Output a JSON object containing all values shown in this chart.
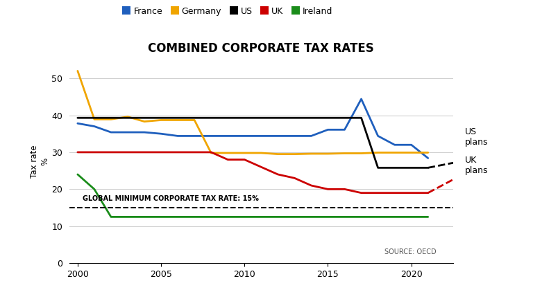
{
  "title": "COMBINED CORPORATE TAX RATES",
  "ylabel": "Tax rate\n%",
  "source": "SOURCE: OECD",
  "ylim": [
    0,
    55
  ],
  "yticks": [
    0,
    10,
    20,
    30,
    40,
    50
  ],
  "xlim": [
    1999.5,
    2022.5
  ],
  "xticks": [
    2000,
    2005,
    2010,
    2015,
    2020
  ],
  "global_min_rate": 15,
  "global_min_label": "GLOBAL MINIMUM CORPORATE TAX RATE: 15%",
  "series": {
    "France": {
      "color": "#1f5fbd",
      "years": [
        2000,
        2001,
        2002,
        2003,
        2004,
        2005,
        2006,
        2007,
        2008,
        2009,
        2010,
        2011,
        2012,
        2013,
        2014,
        2015,
        2016,
        2017,
        2018,
        2019,
        2020,
        2021
      ],
      "values": [
        37.8,
        37.0,
        35.4,
        35.4,
        35.4,
        35.0,
        34.4,
        34.4,
        34.4,
        34.4,
        34.4,
        34.4,
        34.4,
        34.4,
        34.4,
        36.1,
        36.1,
        44.4,
        34.4,
        32.0,
        32.0,
        28.4
      ]
    },
    "Germany": {
      "color": "#f0a500",
      "years": [
        2000,
        2001,
        2002,
        2003,
        2004,
        2005,
        2006,
        2007,
        2008,
        2009,
        2010,
        2011,
        2012,
        2013,
        2014,
        2015,
        2016,
        2017,
        2018,
        2019,
        2020,
        2021
      ],
      "values": [
        52.0,
        38.9,
        38.9,
        39.6,
        38.3,
        38.7,
        38.7,
        38.7,
        29.8,
        29.8,
        29.8,
        29.8,
        29.5,
        29.5,
        29.6,
        29.6,
        29.7,
        29.7,
        29.9,
        29.9,
        29.9,
        29.9
      ]
    },
    "US": {
      "color": "#000000",
      "years": [
        2000,
        2001,
        2002,
        2003,
        2004,
        2005,
        2006,
        2007,
        2008,
        2009,
        2010,
        2011,
        2012,
        2013,
        2014,
        2015,
        2016,
        2017,
        2018,
        2019,
        2020,
        2021
      ],
      "values": [
        39.3,
        39.3,
        39.3,
        39.3,
        39.3,
        39.3,
        39.3,
        39.3,
        39.3,
        39.3,
        39.3,
        39.3,
        39.3,
        39.3,
        39.3,
        39.3,
        39.3,
        39.3,
        25.8,
        25.8,
        25.8,
        25.8
      ],
      "plan_years": [
        2021,
        2023.5
      ],
      "plan_values": [
        25.8,
        28.0
      ]
    },
    "UK": {
      "color": "#cc0000",
      "years": [
        2000,
        2001,
        2002,
        2003,
        2004,
        2005,
        2006,
        2007,
        2008,
        2009,
        2010,
        2011,
        2012,
        2013,
        2014,
        2015,
        2016,
        2017,
        2018,
        2019,
        2020,
        2021
      ],
      "values": [
        30.0,
        30.0,
        30.0,
        30.0,
        30.0,
        30.0,
        30.0,
        30.0,
        30.0,
        28.0,
        28.0,
        26.0,
        24.0,
        23.0,
        21.0,
        20.0,
        20.0,
        19.0,
        19.0,
        19.0,
        19.0,
        19.0
      ],
      "plan_years": [
        2021,
        2023.5
      ],
      "plan_values": [
        19.0,
        25.0
      ]
    },
    "Ireland": {
      "color": "#1a8c1a",
      "years": [
        2000,
        2001,
        2002,
        2003,
        2004,
        2005,
        2006,
        2007,
        2008,
        2009,
        2010,
        2011,
        2012,
        2013,
        2014,
        2015,
        2016,
        2017,
        2018,
        2019,
        2020,
        2021
      ],
      "values": [
        24.0,
        20.0,
        12.5,
        12.5,
        12.5,
        12.5,
        12.5,
        12.5,
        12.5,
        12.5,
        12.5,
        12.5,
        12.5,
        12.5,
        12.5,
        12.5,
        12.5,
        12.5,
        12.5,
        12.5,
        12.5,
        12.5
      ]
    }
  },
  "background_color": "#ffffff",
  "grid_color": "#d0d0d0",
  "us_plans_text": "US\nplans",
  "uk_plans_text": "UK\nplans"
}
